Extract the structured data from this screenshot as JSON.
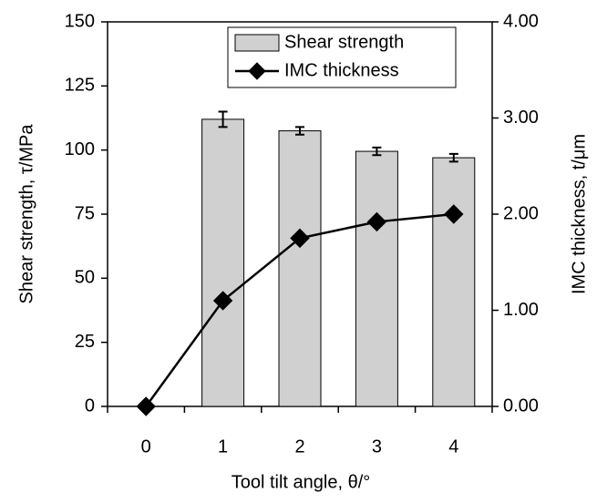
{
  "chart_data": {
    "type": "bar-line",
    "categories": [
      "0",
      "1",
      "2",
      "3",
      "4"
    ],
    "series": [
      {
        "name": "Shear strength",
        "type": "bar",
        "color": "#d0d0d0",
        "values": [
          null,
          112,
          107.5,
          99.5,
          97
        ],
        "errors": [
          null,
          3,
          1.5,
          1.5,
          1.5
        ]
      },
      {
        "name": "IMC thickness",
        "type": "line",
        "axis": "y2",
        "color": "#000000",
        "values": [
          0,
          1.1,
          1.75,
          1.92,
          2.0
        ]
      }
    ],
    "xlabel": "Tool tilt angle, θ/°",
    "ylabel": "Shear strength, τ/MPa",
    "y2label": "IMC thickness, t/μm",
    "ylim": [
      0,
      150
    ],
    "yticks": [
      0,
      25,
      50,
      75,
      100,
      125,
      150
    ],
    "y2lim": [
      0,
      4
    ],
    "y2ticks": [
      {
        "value": 0,
        "label": "0.00"
      },
      {
        "value": 1,
        "label": "1.00"
      },
      {
        "value": 2,
        "label": "2.00"
      },
      {
        "value": 3,
        "label": "3.00"
      },
      {
        "value": 4,
        "label": "4.00"
      }
    ],
    "grid": false,
    "legend": "top-right"
  }
}
